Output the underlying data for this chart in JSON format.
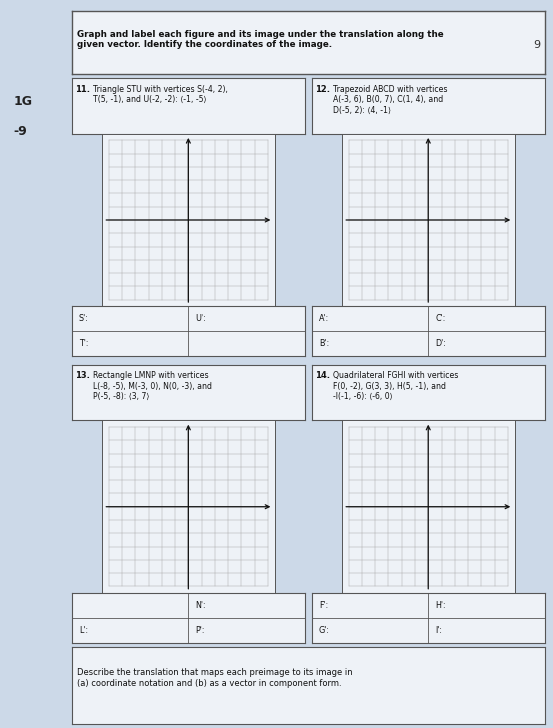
{
  "bg_color": "#ccd9e8",
  "paper_color": "#eef2f7",
  "grid_color": "#aaaaaa",
  "axis_color": "#111111",
  "border_color": "#555555",
  "title_text": "Graph and label each figure and its image under the translation along the\ngiven vector. Identify the coordinates of the image.",
  "problems": [
    {
      "num": "11.",
      "desc": "Triangle STU with vertices S(-4, 2),\nT(5, -1), and U(-2, -2): ⟨-1, -5⟩"
    },
    {
      "num": "12.",
      "desc": "Trapezoid ABCD with vertices\nA(-3, 6), B(0, 7), C(1, 4), and\nD(-5, 2): ⟨4, -1⟩"
    },
    {
      "num": "13.",
      "desc": "Rectangle LMNP with vertices\nL(-8, -5), M(-3, 0), N(0, -3), and\nP(-5, -8): ⟨3, 7⟩"
    },
    {
      "num": "14.",
      "desc": "Quadrilateral FGHI with vertices\nF(0, -2), G(3, 3), H(5, -1), and\n-I(-1, -6): ⟨-6, 0⟩"
    }
  ],
  "answer_labels": [
    [
      [
        "S':",
        "U':"
      ],
      [
        "T':",
        ""
      ]
    ],
    [
      [
        "A':",
        "C':"
      ],
      [
        "B':",
        "D':"
      ]
    ],
    [
      [
        "",
        "N':"
      ],
      [
        "L':",
        "P':"
      ]
    ],
    [
      [
        "F':",
        "H':"
      ],
      [
        "G':",
        "I':"
      ]
    ]
  ],
  "bottom_text": "Describe the translation that maps each preimage to its image in\n(a) coordinate notation and (b) as a vector in component form.",
  "left_labels": [
    "1G",
    "-9"
  ],
  "top_right_note": "9",
  "grid_n": 13
}
